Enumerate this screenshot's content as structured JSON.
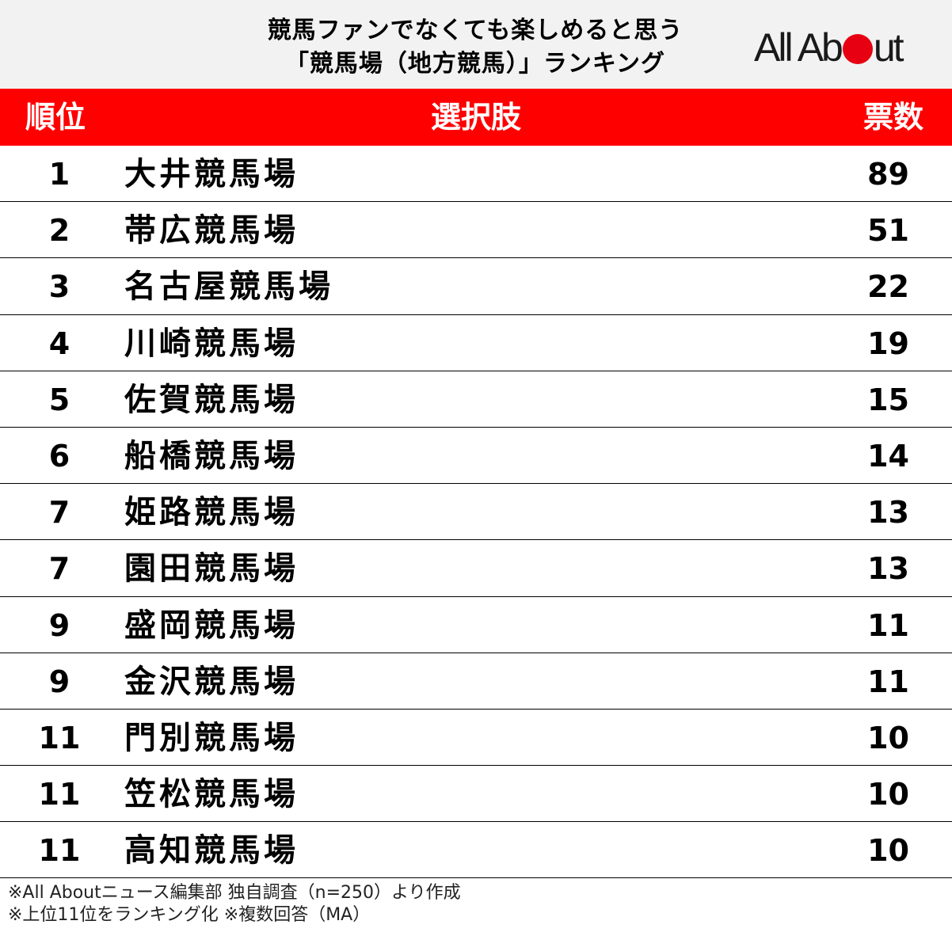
{
  "header": {
    "title_line1": "競馬ファンでなくても楽しめると思う",
    "title_line2": "「競馬場（地方競馬）」ランキング",
    "logo_pre": "All Ab",
    "logo_post": "ut"
  },
  "columns": {
    "rank": "順位",
    "choice": "選択肢",
    "votes": "票数"
  },
  "chart_data": {
    "type": "table",
    "columns": [
      "順位",
      "選択肢",
      "票数"
    ],
    "rows": [
      {
        "rank": "1",
        "name": "大井競馬場",
        "votes": "89"
      },
      {
        "rank": "2",
        "name": "帯広競馬場",
        "votes": "51"
      },
      {
        "rank": "3",
        "name": "名古屋競馬場",
        "votes": "22"
      },
      {
        "rank": "4",
        "name": "川崎競馬場",
        "votes": "19"
      },
      {
        "rank": "5",
        "name": "佐賀競馬場",
        "votes": "15"
      },
      {
        "rank": "6",
        "name": "船橋競馬場",
        "votes": "14"
      },
      {
        "rank": "7",
        "name": "姫路競馬場",
        "votes": "13"
      },
      {
        "rank": "7",
        "name": "園田競馬場",
        "votes": "13"
      },
      {
        "rank": "9",
        "name": "盛岡競馬場",
        "votes": "11"
      },
      {
        "rank": "9",
        "name": "金沢競馬場",
        "votes": "11"
      },
      {
        "rank": "11",
        "name": "門別競馬場",
        "votes": "10"
      },
      {
        "rank": "11",
        "name": "笠松競馬場",
        "votes": "10"
      },
      {
        "rank": "11",
        "name": "高知競馬場",
        "votes": "10"
      }
    ]
  },
  "notes": {
    "line1": "※All Aboutニュース編集部 独自調査（n=250）より作成",
    "line2": "※上位11位をランキング化 ※複数回答（MA）"
  },
  "colors": {
    "header_bg": "#f2f2f2",
    "accent": "#ff0000",
    "logo_dot": "#e60012"
  }
}
